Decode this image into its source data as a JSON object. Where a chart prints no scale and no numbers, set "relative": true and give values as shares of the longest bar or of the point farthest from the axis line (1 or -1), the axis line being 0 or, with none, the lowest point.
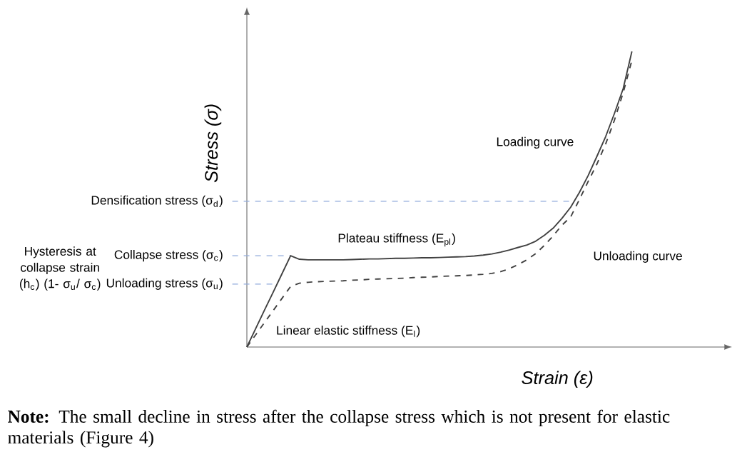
{
  "chart_data": {
    "type": "line",
    "relative": true,
    "xlabel": "Strain (ε)",
    "ylabel": "Stress (σ)",
    "tick_labels": false,
    "marker": "none",
    "categories": [
      null,
      null,
      null,
      null,
      null,
      null,
      null,
      null,
      null,
      null,
      null,
      null,
      null,
      null,
      null,
      null,
      null,
      null,
      null,
      null,
      null,
      null,
      null,
      null,
      null,
      null,
      null,
      null,
      null,
      null,
      null,
      null,
      null,
      null,
      null,
      null,
      null,
      null,
      null,
      null,
      null,
      null,
      null,
      null,
      null
    ],
    "series": [
      {
        "color": "#404040",
        "line_style": "solid",
        "values": [
          0,
          0.062,
          0.124,
          0.185,
          0.247,
          0.309,
          0.297,
          0.295,
          0.295,
          0.295,
          0.295,
          0.295,
          0.296,
          0.297,
          0.298,
          0.298,
          0.299,
          0.3,
          0.3,
          0.301,
          0.302,
          0.302,
          0.303,
          0.304,
          0.305,
          0.306,
          0.308,
          0.311,
          0.315,
          0.321,
          0.328,
          0.337,
          0.345,
          0.358,
          0.378,
          0.402,
          0.435,
          0.473,
          0.523,
          0.58,
          0.645,
          0.712,
          0.79,
          0.874,
          1.0
        ]
      },
      {
        "color": "#404040",
        "line_style": "dashed",
        "values": [
          0,
          0.041,
          0.082,
          0.123,
          0.164,
          0.205,
          0.216,
          0.219,
          0.221,
          0.222,
          0.223,
          0.224,
          0.226,
          0.227,
          0.229,
          0.23,
          0.231,
          0.232,
          0.233,
          0.235,
          0.236,
          0.237,
          0.239,
          0.24,
          0.241,
          0.242,
          0.244,
          0.246,
          0.249,
          0.255,
          0.265,
          0.279,
          0.295,
          0.316,
          0.344,
          0.376,
          0.412,
          0.44,
          0.499,
          0.56,
          0.619,
          0.687,
          0.767,
          0.86,
          0.97
        ]
      }
    ],
    "ref_lines": [
      {
        "axis": "y",
        "value": 0.493,
        "label": "Densification stress (σ$_{d}$)",
        "color": "#8faadc",
        "line_style": "dashed"
      },
      {
        "axis": "y",
        "value": 0.309,
        "label": "Collapse stress (σ$_{c}$)",
        "color": "#8faadc",
        "line_style": "dashed"
      },
      {
        "axis": "y",
        "value": 0.213,
        "label": "Unloading stress (σ$_{u}$)",
        "color": "#8faadc",
        "line_style": "dashed"
      }
    ],
    "annotations": [
      "Loading curve",
      "Unloading curve",
      "Plateau stiffness (E$_{pl}$)",
      "Linear elastic stiffness (E$_{l}$)",
      "Hysteresis at collapse strain (h$_{c}$) (1- σ$_{u}$/ σ$_{c}$)",
      "**Note:** The small decline in stress after the collapse stress which is not present for elastic materials (Figure 4)"
    ]
  }
}
